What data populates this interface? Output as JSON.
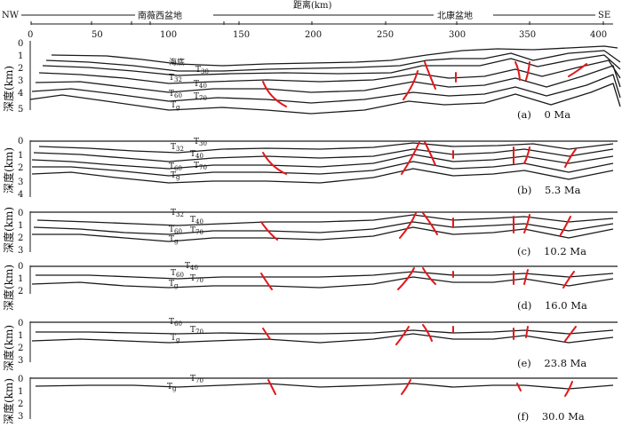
{
  "top_axis": {
    "left_end": "NW",
    "right_end": "SE",
    "title": "距离(km)",
    "left_basin": "南薇西盆地",
    "right_basin": "北康盆地",
    "ticks": [
      "0",
      "50",
      "100",
      "150",
      "200",
      "250",
      "300",
      "350",
      "400"
    ]
  },
  "horizon_labels": {
    "seafloor": "海底",
    "T": "T",
    "T30": "30",
    "T32": "32",
    "T40": "40",
    "T60": "60",
    "T70": "70",
    "Tg": "g"
  },
  "panels": [
    {
      "id": "a",
      "caption": "(a)    0 Ma",
      "ylabel": "深度(km)",
      "ticks": [
        "0",
        "1",
        "2",
        "3",
        "4",
        "5"
      ]
    },
    {
      "id": "b",
      "caption": "(b)    5.3 Ma",
      "ylabel": "深度(km)",
      "ticks": [
        "0",
        "1",
        "2",
        "3",
        "4"
      ]
    },
    {
      "id": "c",
      "caption": "(c)    10.2 Ma",
      "ylabel": "深度(km)",
      "ticks": [
        "0",
        "1",
        "2",
        "3"
      ]
    },
    {
      "id": "d",
      "caption": "(d)    16.0 Ma",
      "ylabel": "深度(km)",
      "ticks": [
        "0",
        "1",
        "2"
      ]
    },
    {
      "id": "e",
      "caption": "(e)    23.8 Ma",
      "ylabel": "深度(km)",
      "ticks": [
        "0",
        "1",
        "2",
        "3"
      ]
    },
    {
      "id": "f",
      "caption": "(f)    30.0 Ma",
      "ylabel": "深度(km)",
      "ticks": [
        "0",
        "1",
        "2",
        "3"
      ]
    }
  ],
  "colors": {
    "horizon": "#1a1a1a",
    "fault": "#e3171b"
  }
}
